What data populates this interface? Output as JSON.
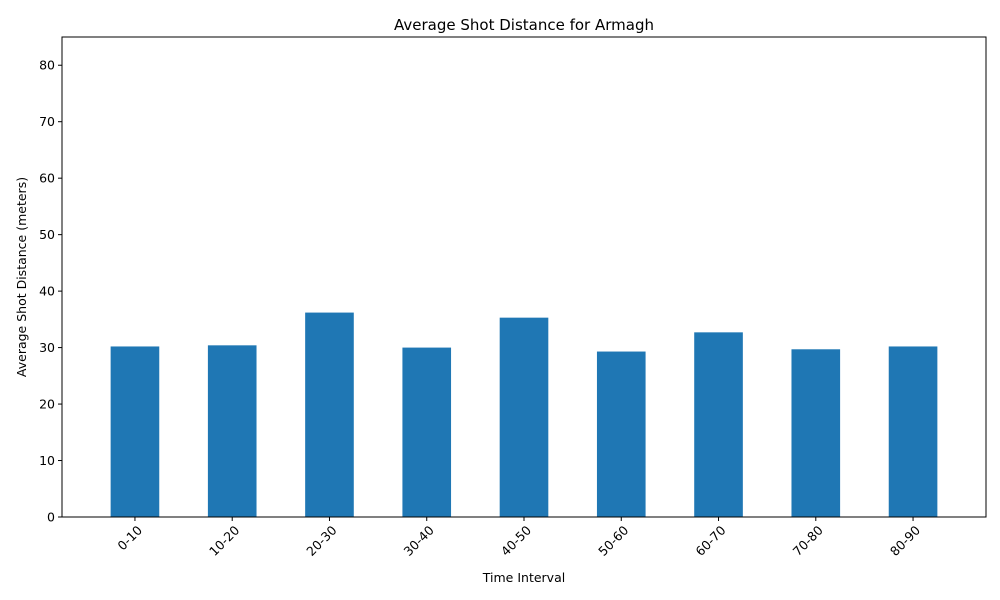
{
  "chart_data": {
    "type": "bar",
    "title": "Average Shot Distance for Armagh",
    "xlabel": "Time Interval",
    "ylabel": "Average Shot Distance (meters)",
    "categories": [
      "0-10",
      "10-20",
      "20-30",
      "30-40",
      "40-50",
      "50-60",
      "60-70",
      "70-80",
      "80-90"
    ],
    "values": [
      30.2,
      30.4,
      36.2,
      30.0,
      35.3,
      29.3,
      32.7,
      29.7,
      30.2
    ],
    "ylim": [
      0,
      85
    ],
    "yticks": [
      0,
      10,
      20,
      30,
      40,
      50,
      60,
      70,
      80
    ],
    "grid": false,
    "bar_color": "#1f77b4"
  }
}
